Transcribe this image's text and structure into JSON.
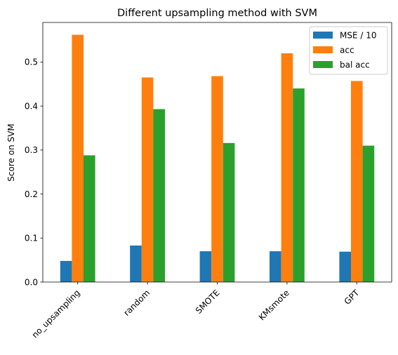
{
  "chart_data": {
    "type": "bar",
    "title": "Different upsampling method with SVM",
    "xlabel": "",
    "ylabel": "Score on SVM",
    "categories": [
      "no_upsampling",
      "random",
      "SMOTE",
      "KMsmote",
      "GPT"
    ],
    "series": [
      {
        "name": "MSE / 10",
        "color": "#1f77b4",
        "values": [
          0.048,
          0.083,
          0.07,
          0.07,
          0.069
        ]
      },
      {
        "name": "acc",
        "color": "#ff7f0e",
        "values": [
          0.562,
          0.465,
          0.468,
          0.52,
          0.457
        ]
      },
      {
        "name": "bal acc",
        "color": "#2ca02c",
        "values": [
          0.288,
          0.393,
          0.316,
          0.44,
          0.31
        ]
      }
    ],
    "ylim": [
      0,
      0.59
    ],
    "yticks": [
      0.0,
      0.1,
      0.2,
      0.3,
      0.4,
      0.5
    ],
    "ytick_labels": [
      "0.0",
      "0.1",
      "0.2",
      "0.3",
      "0.4",
      "0.5"
    ],
    "grid": false,
    "legend_position": "top-right"
  }
}
